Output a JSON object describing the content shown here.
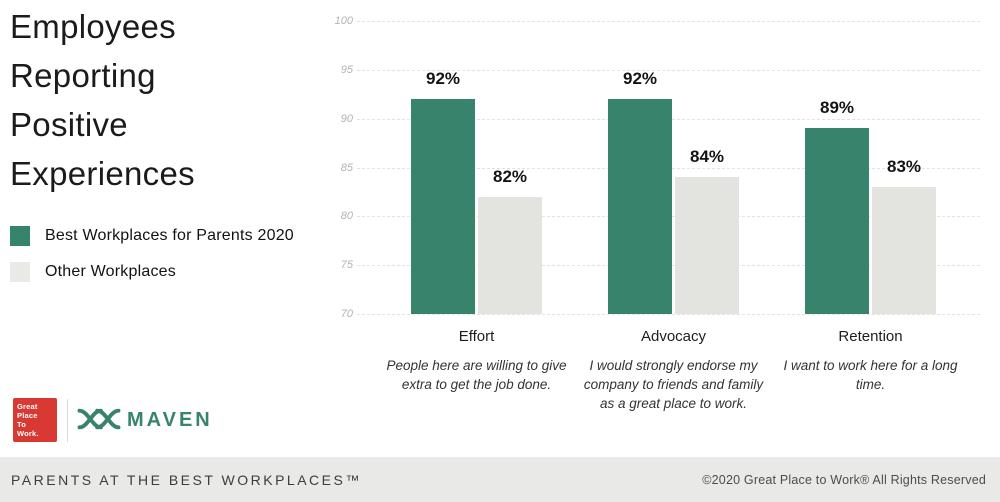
{
  "title": "Employees\nReporting\nPositive\nExperiences",
  "legend": {
    "items": [
      {
        "label": "Best Workplaces for Parents 2020",
        "color": "#37836C"
      },
      {
        "label": "Other Workplaces",
        "color": "#E9E9E6"
      }
    ]
  },
  "chart_data": {
    "type": "bar",
    "title": "Employees Reporting Positive Experiences",
    "categories": [
      "Effort",
      "Advocacy",
      "Retention"
    ],
    "category_captions": [
      "People here are willing to give extra to get the job done.",
      "I would strongly endorse my company to friends and family as a great place to work.",
      "I want to work here for a long time."
    ],
    "series": [
      {
        "name": "Best Workplaces for Parents 2020",
        "color": "#37836C",
        "values": [
          92,
          92,
          89
        ]
      },
      {
        "name": "Other Workplaces",
        "color": "#E3E3DF",
        "values": [
          82,
          84,
          83
        ]
      }
    ],
    "value_labels": [
      [
        "92%",
        "82%"
      ],
      [
        "92%",
        "84%"
      ],
      [
        "89%",
        "83%"
      ]
    ],
    "ylim": [
      70,
      100
    ],
    "yticks": [
      100,
      95,
      90,
      85,
      80,
      75,
      70
    ],
    "grid": true,
    "legend_position": "left",
    "value_suffix": "%"
  },
  "logos": {
    "gptw_text": "Great\nPlace\nTo\nWork.",
    "gptw_color": "#D83A33",
    "maven_text": "MAVEN",
    "maven_color": "#37836C"
  },
  "footer": {
    "left": "PARENTS AT THE BEST WORKPLACES™",
    "right": "©2020 Great Place to Work® All Rights Reserved"
  }
}
